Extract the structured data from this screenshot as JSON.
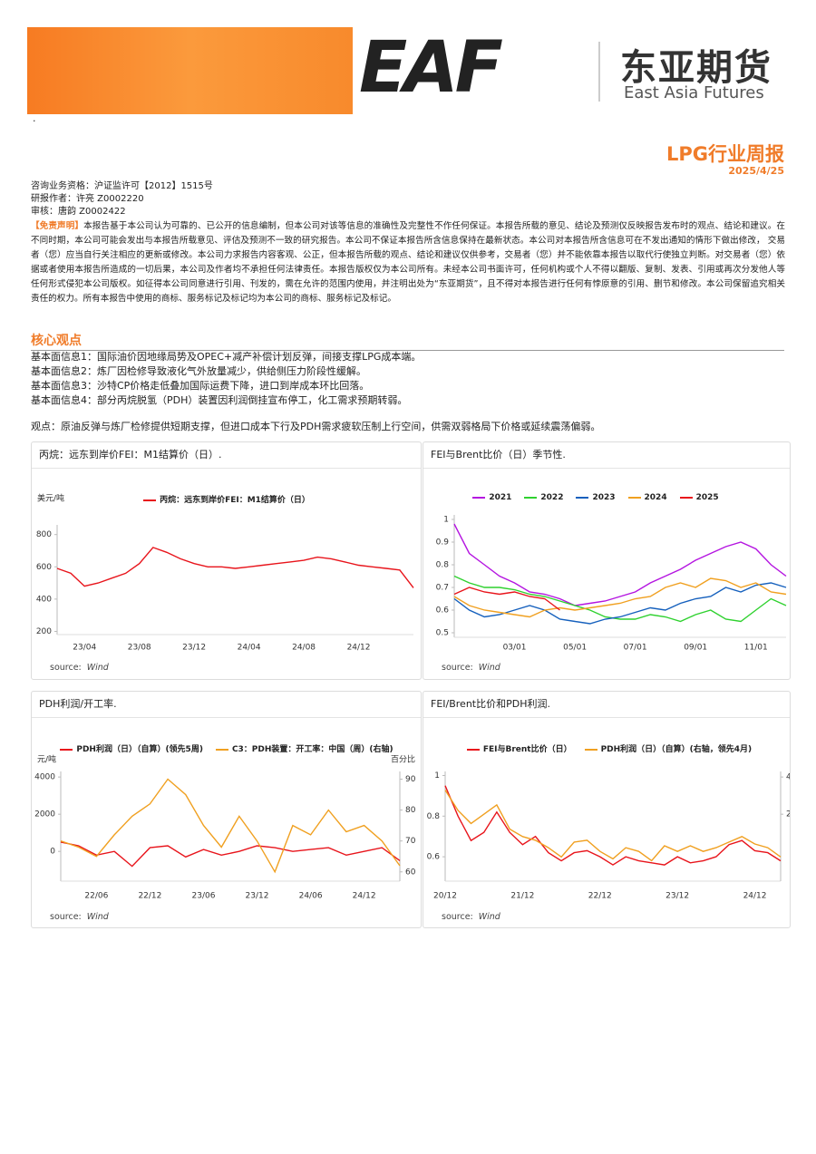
{
  "header": {
    "logo_mark": "EAF",
    "company_cn": "东亚期货",
    "company_en": "East Asia Futures",
    "dot": ".",
    "title": "LPG行业周报",
    "date": "2025/4/25"
  },
  "meta": [
    "咨询业务资格：沪证监许可【2012】1515号",
    "研报作者：许亮 Z0002220",
    "审核：唐韵 Z0002422"
  ],
  "disclaimer": {
    "label": "【免责声明】",
    "text": "本报告基于本公司认为可靠的、已公开的信息编制，但本公司对该等信息的准确性及完整性不作任何保证。本报告所载的意见、结论及预测仅反映报告发布时的观点、结论和建议。在不同时期，本公司可能会发出与本报告所载意见、评估及预测不一致的研究报告。本公司不保证本报告所含信息保持在最新状态。本公司对本报告所含信息可在不发出通知的情形下做出修改， 交易者（您）应当自行关注相应的更新或修改。本公司力求报告内容客观、公正，但本报告所载的观点、结论和建议仅供参考，交易者（您）并不能依靠本报告以取代行使独立判断。对交易者（您）依据或者使用本报告所造成的一切后果，本公司及作者均不承担任何法律责任。本报告版权仅为本公司所有。未经本公司书面许可，任何机构或个人不得以翻版、复制、发表、引用或再次分发他人等任何形式侵犯本公司版权。如征得本公司同意进行引用、刊发的，需在允许的范围内使用，并注明出处为“东亚期货”，且不得对本报告进行任何有悖原意的引用、删节和修改。本公司保留追究相关责任的权力。所有本报告中使用的商标、服务标记及标记均为本公司的商标、服务标记及标记。"
  },
  "core": {
    "title": "核心观点",
    "points": [
      "基本面信息1：国际油价因地缘局势及OPEC+减产补偿计划反弹，间接支撑LPG成本端。",
      "基本面信息2：炼厂因检修导致液化气外放量减少，供给侧压力阶段性缓解。",
      "基本面信息3：沙特CP价格走低叠加国际运费下降，进口到岸成本环比回落。",
      "基本面信息4：部分丙烷脱氢（PDH）装置因利润倒挂宣布停工，化工需求预期转弱。"
    ],
    "conclusion": "观点：原油反弹与炼厂检修提供短期支撑，但进口成本下行及PDH需求疲软压制上行空间，供需双弱格局下价格或延续震荡偏弱。"
  },
  "chart_data": [
    {
      "type": "line",
      "title": "丙烷：远东到岸价FEI：M1结算价（日）.",
      "y_label": "美元/吨",
      "source_label": "source:",
      "source": "Wind",
      "x": [
        "23/02",
        "23/03",
        "23/04",
        "23/05",
        "23/06",
        "23/07",
        "23/08",
        "23/09",
        "23/10",
        "23/11",
        "23/12",
        "24/01",
        "24/02",
        "24/03",
        "24/04",
        "24/05",
        "24/06",
        "24/07",
        "24/08",
        "24/09",
        "24/10",
        "24/11",
        "24/12",
        "25/01",
        "25/02",
        "25/03",
        "25/04"
      ],
      "xticks": [
        "23/04",
        "23/08",
        "23/12",
        "24/04",
        "24/08",
        "24/12"
      ],
      "ylim": [
        180,
        860
      ],
      "yticks": [
        200,
        400,
        600,
        800
      ],
      "series": [
        {
          "name": "丙烷：远东到岸价FEI：M1结算价（日）",
          "color": "#e8141b",
          "values": [
            590,
            560,
            480,
            500,
            530,
            560,
            620,
            720,
            690,
            650,
            620,
            600,
            600,
            590,
            600,
            610,
            620,
            630,
            640,
            660,
            650,
            630,
            610,
            600,
            590,
            580,
            470
          ]
        }
      ]
    },
    {
      "type": "line",
      "title": "FEI与Brent比价（日）季节性.",
      "source_label": "source:",
      "source": "Wind",
      "x": [
        "01/01",
        "01/15",
        "02/01",
        "02/15",
        "03/01",
        "03/15",
        "04/01",
        "04/15",
        "05/01",
        "05/15",
        "06/01",
        "06/15",
        "07/01",
        "07/15",
        "08/01",
        "08/15",
        "09/01",
        "09/15",
        "10/01",
        "10/15",
        "11/01",
        "11/15",
        "12/01"
      ],
      "xticks": [
        "03/01",
        "05/01",
        "07/01",
        "09/01",
        "11/01"
      ],
      "ylim": [
        0.48,
        1.02
      ],
      "yticks": [
        0.5,
        0.6,
        0.7,
        0.8,
        0.9,
        1
      ],
      "series": [
        {
          "name": "2021",
          "color": "#b414e0",
          "values": [
            0.98,
            0.85,
            0.8,
            0.75,
            0.72,
            0.68,
            0.67,
            0.65,
            0.62,
            0.63,
            0.64,
            0.66,
            0.68,
            0.72,
            0.75,
            0.78,
            0.82,
            0.85,
            0.88,
            0.9,
            0.87,
            0.8,
            0.75
          ]
        },
        {
          "name": "2022",
          "color": "#2fd12f",
          "values": [
            0.75,
            0.72,
            0.7,
            0.7,
            0.69,
            0.67,
            0.66,
            0.64,
            0.62,
            0.6,
            0.57,
            0.56,
            0.56,
            0.58,
            0.57,
            0.55,
            0.58,
            0.6,
            0.56,
            0.55,
            0.6,
            0.65,
            0.62
          ]
        },
        {
          "name": "2023",
          "color": "#1560bd",
          "values": [
            0.65,
            0.6,
            0.57,
            0.58,
            0.6,
            0.62,
            0.6,
            0.56,
            0.55,
            0.54,
            0.56,
            0.57,
            0.59,
            0.61,
            0.6,
            0.63,
            0.65,
            0.66,
            0.7,
            0.68,
            0.71,
            0.72,
            0.7
          ]
        },
        {
          "name": "2024",
          "color": "#f0a020",
          "values": [
            0.66,
            0.62,
            0.6,
            0.59,
            0.58,
            0.57,
            0.6,
            0.61,
            0.6,
            0.61,
            0.62,
            0.63,
            0.65,
            0.66,
            0.7,
            0.72,
            0.7,
            0.74,
            0.73,
            0.7,
            0.72,
            0.68,
            0.67
          ]
        },
        {
          "name": "2025",
          "color": "#e8141b",
          "values": [
            0.67,
            0.7,
            0.68,
            0.67,
            0.68,
            0.66,
            0.65,
            0.6,
            null,
            null,
            null,
            null,
            null,
            null,
            null,
            null,
            null,
            null,
            null,
            null,
            null,
            null,
            null
          ]
        }
      ]
    },
    {
      "type": "line",
      "title": "PDH利润/开工率.",
      "y_label": "元/吨",
      "y2_label": "百分比",
      "source_label": "source:",
      "source": "Wind",
      "x": [
        "22/02",
        "22/04",
        "22/06",
        "22/08",
        "22/10",
        "22/12",
        "23/02",
        "23/04",
        "23/06",
        "23/08",
        "23/10",
        "23/12",
        "24/02",
        "24/04",
        "24/06",
        "24/08",
        "24/10",
        "24/12",
        "25/02",
        "25/04"
      ],
      "xticks": [
        "22/06",
        "22/12",
        "23/06",
        "23/12",
        "24/06",
        "24/12"
      ],
      "ylim": [
        -1600,
        4300
      ],
      "yticks": [
        0,
        2000,
        4000
      ],
      "y2lim": [
        57,
        92.5
      ],
      "y2ticks": [
        60,
        70,
        80,
        90
      ],
      "series": [
        {
          "name": "PDH利润（日）（自算）(领先5周)",
          "color": "#e8141b",
          "values": [
            500,
            300,
            -200,
            0,
            -800,
            200,
            300,
            -300,
            100,
            -200,
            0,
            300,
            200,
            0,
            100,
            200,
            -200,
            0,
            200,
            -500
          ]
        },
        {
          "name": "C3：PDH装置：开工率：中国（周）(右轴)",
          "color": "#f0a020",
          "axis": "y2",
          "values": [
            70,
            68,
            65,
            72,
            78,
            82,
            90,
            85,
            75,
            68,
            78,
            70,
            60,
            75,
            72,
            80,
            73,
            75,
            70,
            62
          ]
        }
      ]
    },
    {
      "type": "line",
      "title": "FEI/Brent比价和PDH利润.",
      "source_label": "source:",
      "source": "Wind",
      "x": [
        "20/12",
        "21/02",
        "21/04",
        "21/06",
        "21/08",
        "21/10",
        "21/12",
        "22/02",
        "22/04",
        "22/06",
        "22/08",
        "22/10",
        "22/12",
        "23/02",
        "23/04",
        "23/06",
        "23/08",
        "23/10",
        "23/12",
        "24/02",
        "24/04",
        "24/06",
        "24/08",
        "24/10",
        "24/12",
        "25/02",
        "25/04"
      ],
      "xticks": [
        "20/12",
        "21/12",
        "22/12",
        "23/12",
        "24/12"
      ],
      "ylim": [
        0.48,
        1.02
      ],
      "yticks": [
        0.6,
        0.8,
        1
      ],
      "y2lim": [
        -1.6,
        4.3
      ],
      "y2ticks": [
        2,
        4
      ],
      "series": [
        {
          "name": "FEI与Brent比价（日）",
          "color": "#e8141b",
          "values": [
            0.95,
            0.8,
            0.68,
            0.72,
            0.82,
            0.72,
            0.66,
            0.7,
            0.62,
            0.58,
            0.62,
            0.63,
            0.6,
            0.56,
            0.6,
            0.58,
            0.57,
            0.56,
            0.6,
            0.57,
            0.58,
            0.6,
            0.66,
            0.68,
            0.63,
            0.62,
            0.58
          ]
        },
        {
          "name": "PDH利润（日）（自算）(右轴，领先4月)",
          "color": "#f0a020",
          "axis": "y2",
          "values": [
            3.3,
            2.2,
            1.5,
            2.0,
            2.5,
            1.2,
            0.8,
            0.6,
            0.2,
            -0.3,
            0.5,
            0.6,
            0.0,
            -0.4,
            0.2,
            0.0,
            -0.5,
            0.3,
            0.0,
            0.3,
            0.0,
            0.2,
            0.5,
            0.8,
            0.4,
            0.2,
            -0.3
          ]
        }
      ]
    }
  ]
}
